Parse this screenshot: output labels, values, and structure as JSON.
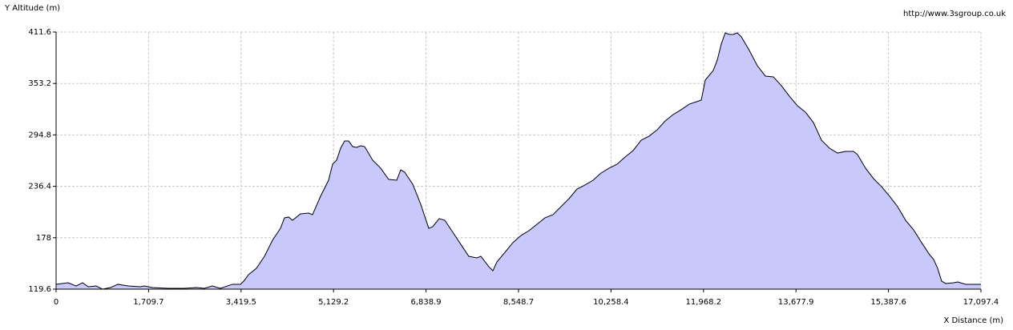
{
  "chart_data": {
    "type": "area",
    "y_label": "Y Altitude (m)",
    "x_label": "X Distance (m)",
    "source": "http://www.3sgroup.co.uk",
    "color": "#c8c8fa",
    "line_color": "#000000",
    "grid": true,
    "xlim": [
      0,
      17097.4
    ],
    "ylim": [
      119.6,
      411.6
    ],
    "xticks": [
      0,
      {
        "value": 1709.7,
        "label": "1,709.7"
      },
      {
        "value": 3419.5,
        "label": "3,419.5"
      },
      {
        "value": 5129.2,
        "label": "5,129.2"
      },
      {
        "value": 6838.9,
        "label": "6,838.9"
      },
      {
        "value": 8548.7,
        "label": "8,548.7"
      },
      {
        "value": 10258.4,
        "label": "10,258.4"
      },
      {
        "value": 11968.2,
        "label": "11,968.2"
      },
      {
        "value": 13677.9,
        "label": "13,677.9"
      },
      {
        "value": 15387.6,
        "label": "15,387.6"
      },
      {
        "value": 17097.4,
        "label": "17,097.4"
      }
    ],
    "yticks": [
      119.6,
      178,
      236.4,
      294.8,
      353.2,
      411.6
    ],
    "x": [
      0,
      222,
      370,
      489,
      593,
      741,
      859,
      1007,
      1141,
      1333,
      1556,
      1630,
      1778,
      2074,
      2371,
      2593,
      2741,
      2889,
      3037,
      3259,
      3408,
      3482,
      3556,
      3704,
      3852,
      4000,
      4148,
      4222,
      4297,
      4371,
      4519,
      4667,
      4741,
      4889,
      5037,
      5111,
      5186,
      5260,
      5334,
      5408,
      5482,
      5556,
      5630,
      5704,
      5852,
      6000,
      6149,
      6297,
      6371,
      6445,
      6593,
      6741,
      6889,
      6963,
      7082,
      7186,
      7334,
      7482,
      7630,
      7778,
      7852,
      8000,
      8075,
      8149,
      8297,
      8445,
      8593,
      8741,
      8890,
      9038,
      9186,
      9334,
      9482,
      9630,
      9778,
      9927,
      10075,
      10223,
      10371,
      10519,
      10667,
      10816,
      10964,
      11112,
      11260,
      11408,
      11556,
      11704,
      11927,
      12001,
      12149,
      12223,
      12297,
      12371,
      12445,
      12519,
      12593,
      12668,
      12816,
      12964,
      13112,
      13260,
      13408,
      13556,
      13705,
      13853,
      14001,
      14149,
      14297,
      14445,
      14594,
      14742,
      14816,
      14964,
      15112,
      15260,
      15409,
      15557,
      15705,
      15853,
      16001,
      16149,
      16223,
      16297,
      16371,
      16445,
      16594,
      16668,
      16816,
      17097.4
    ],
    "values": [
      125.1,
      126.9,
      123.2,
      126.9,
      122.3,
      123.2,
      119.6,
      121.4,
      125.1,
      123.2,
      122.3,
      123.2,
      121.4,
      120.5,
      120.5,
      121.4,
      120.5,
      123.2,
      120.5,
      125.1,
      125.1,
      129.6,
      136.0,
      143.3,
      156.9,
      175.1,
      188.7,
      200.6,
      201.5,
      197.8,
      205.1,
      206.0,
      204.2,
      225.1,
      243.3,
      261.5,
      266.1,
      279.7,
      287.9,
      287.9,
      281.5,
      280.6,
      282.4,
      281.5,
      266.1,
      257.0,
      244.2,
      243.3,
      255.1,
      252.4,
      238.8,
      216.0,
      188.7,
      190.6,
      199.7,
      197.8,
      184.2,
      170.5,
      156.9,
      155.1,
      156.9,
      145.1,
      140.5,
      150.5,
      161.4,
      172.4,
      180.5,
      186.0,
      193.3,
      200.6,
      204.2,
      213.3,
      222.4,
      233.3,
      237.9,
      243.3,
      251.5,
      257.0,
      261.5,
      269.7,
      277.0,
      288.8,
      293.4,
      300.6,
      310.6,
      317.9,
      323.4,
      329.7,
      334.3,
      357.0,
      368.0,
      379.8,
      398.0,
      410.7,
      408.9,
      408.9,
      410.7,
      406.2,
      390.7,
      373.4,
      361.6,
      360.7,
      350.7,
      338.8,
      327.9,
      320.6,
      308.8,
      288.8,
      279.7,
      274.2,
      276.1,
      276.1,
      272.4,
      257.0,
      245.1,
      236.0,
      225.1,
      213.3,
      197.8,
      186.9,
      172.4,
      158.7,
      153.3,
      143.3,
      128.7,
      126.0,
      126.9,
      127.8,
      125.1,
      125.1
    ]
  }
}
